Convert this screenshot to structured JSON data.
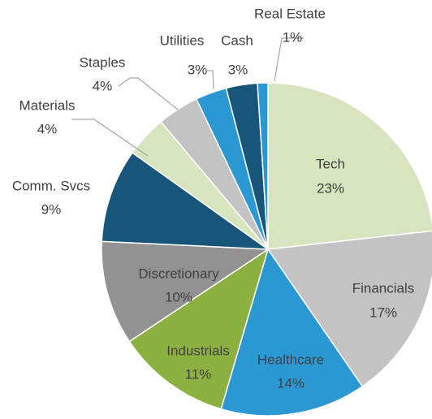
{
  "chart_data": {
    "type": "pie",
    "categories": [
      "Tech",
      "Financials",
      "Healthcare",
      "Industrials",
      "Discretionary",
      "Comm. Svcs",
      "Materials",
      "Staples",
      "Utilities",
      "Cash",
      "Real Estate"
    ],
    "values": [
      23,
      17,
      14,
      11,
      10,
      9,
      4,
      4,
      3,
      3,
      1
    ],
    "value_labels": [
      "23%",
      "17%",
      "14%",
      "11%",
      "10%",
      "9%",
      "4%",
      "4%",
      "3%",
      "3%",
      "1%"
    ],
    "colors": [
      "#d7e4bd",
      "#c3c3c3",
      "#2b98d4",
      "#8db141",
      "#929292",
      "#17567a",
      "#d7e4bd",
      "#c3c3c3",
      "#2b98d4",
      "#17567a",
      "#2b98d4"
    ]
  }
}
